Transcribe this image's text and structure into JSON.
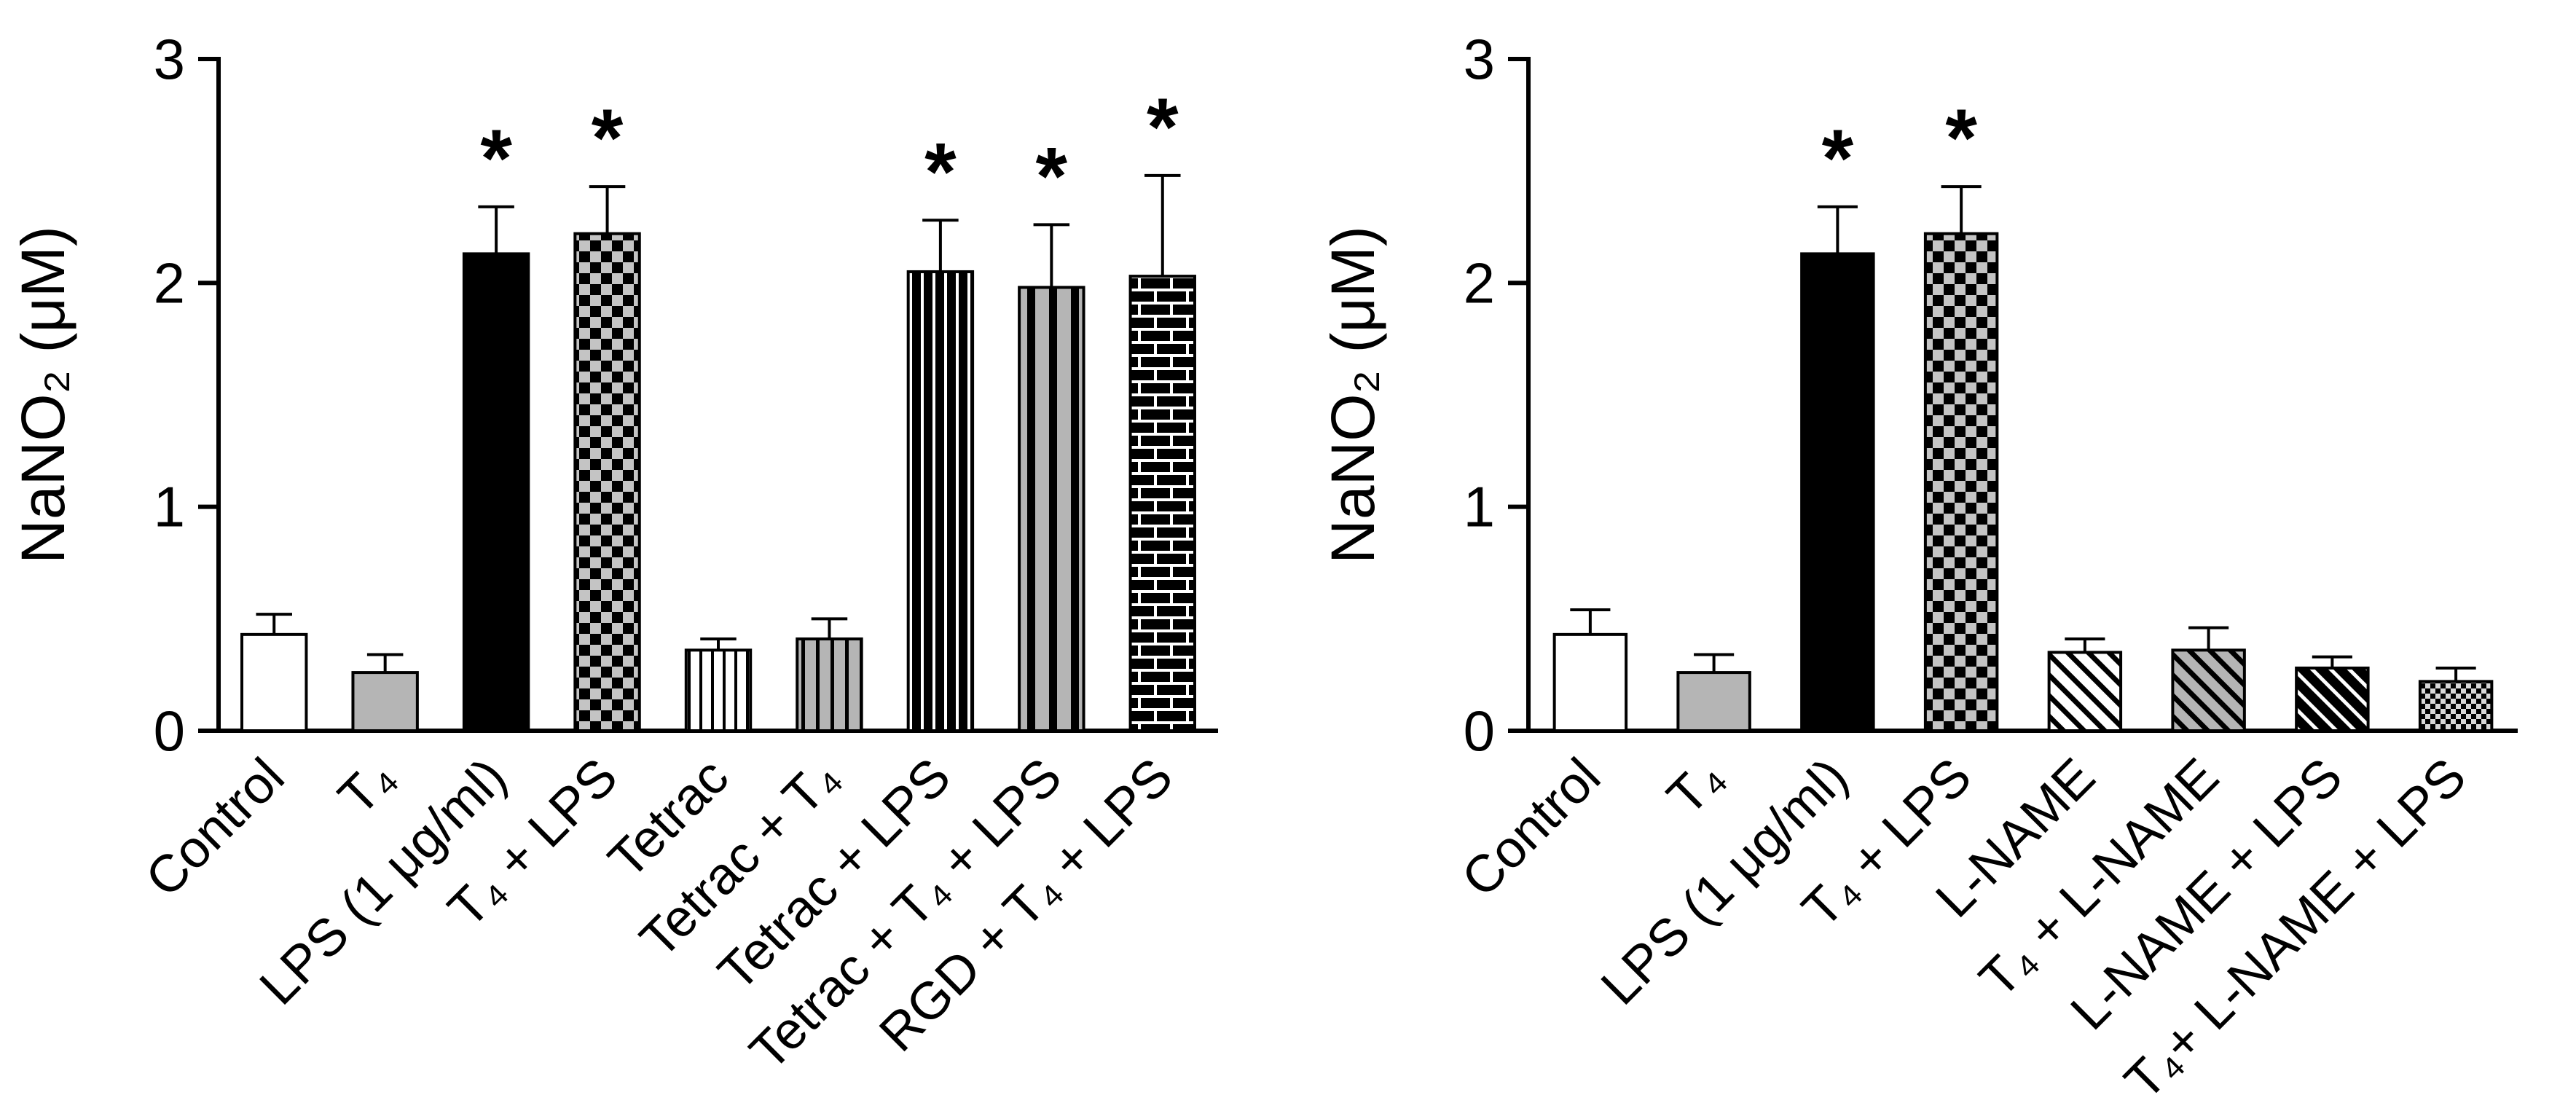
{
  "chart_data": [
    {
      "name": "left-panel",
      "type": "bar",
      "title": "",
      "ylabel": "NaNO₂ (μM)",
      "xlabel": "",
      "ylim": [
        0,
        3
      ],
      "yticks": [
        "0",
        "1",
        "2",
        "3"
      ],
      "grid": false,
      "legend": false,
      "categories": [
        "Control",
        "T₄",
        "LPS (1 μg/ml)",
        "T₄ + LPS",
        "Tetrac",
        "Tetrac + T₄",
        "Tetrac + LPS",
        "Tetrac + T₄ + LPS",
        "RGD + T₄ + LPS"
      ],
      "values": [
        0.43,
        0.26,
        2.13,
        2.22,
        0.36,
        0.41,
        2.05,
        1.98,
        2.03
      ],
      "errors": [
        0.09,
        0.08,
        0.21,
        0.21,
        0.05,
        0.09,
        0.23,
        0.28,
        0.45
      ],
      "significance": [
        "",
        "",
        "*",
        "*",
        "",
        "",
        "*",
        "*",
        "*"
      ],
      "bar_styles": [
        "solid-white",
        "solid-gray",
        "solid-black",
        "checker",
        "vstripe-white",
        "vstripe-gray",
        "vstripe-black",
        "vband-gray",
        "brick-black"
      ],
      "colors": {
        "outline": "#000000",
        "gray_fill": "#b5b5b5",
        "axis": "#000000"
      }
    },
    {
      "name": "right-panel",
      "type": "bar",
      "title": "",
      "ylabel": "NaNO₂ (μM)",
      "xlabel": "",
      "ylim": [
        0,
        3
      ],
      "yticks": [
        "0",
        "1",
        "2",
        "3"
      ],
      "grid": false,
      "legend": false,
      "categories": [
        "Control",
        "T₄",
        "LPS (1 μg/ml)",
        "T₄ + LPS",
        "L-NAME",
        "T₄ + L-NAME",
        "L-NAME + LPS",
        "T₄+ L-NAME + LPS"
      ],
      "values": [
        0.43,
        0.26,
        2.13,
        2.22,
        0.35,
        0.36,
        0.28,
        0.22
      ],
      "errors": [
        0.11,
        0.08,
        0.21,
        0.21,
        0.06,
        0.1,
        0.05,
        0.06
      ],
      "significance": [
        "",
        "",
        "*",
        "*",
        "",
        "",
        "",
        ""
      ],
      "bar_styles": [
        "solid-white",
        "solid-gray",
        "solid-black",
        "checker",
        "diag-white",
        "diag-gray",
        "diag-black",
        "fine-checker"
      ],
      "colors": {
        "outline": "#000000",
        "gray_fill": "#b5b5b5",
        "axis": "#000000"
      }
    }
  ]
}
